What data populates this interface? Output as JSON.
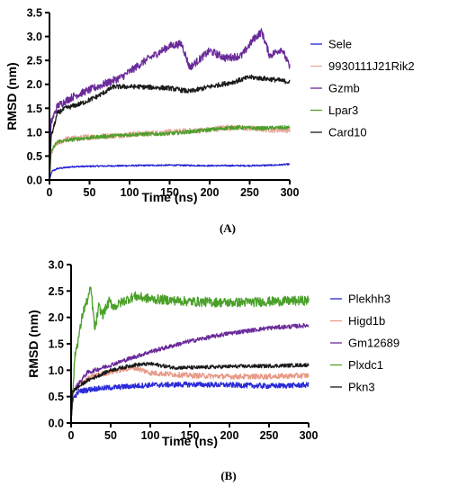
{
  "chart_data": [
    {
      "type": "line",
      "panel_label": "(A)",
      "xlabel": "Time (ns)",
      "ylabel": "RMSD (nm)",
      "xlim": [
        0,
        300
      ],
      "ylim": [
        0,
        3.5
      ],
      "xticks": [
        0,
        50,
        100,
        150,
        200,
        250,
        300
      ],
      "yticks": [
        0.0,
        0.5,
        1.0,
        1.5,
        2.0,
        2.5,
        3.0,
        3.5
      ],
      "ytick_labels": [
        "0.0",
        "0.5",
        "1.0",
        "1.5",
        "2.0",
        "2.5",
        "3.0",
        "3.5"
      ],
      "legend_position": "right",
      "series": [
        {
          "name": "Sele",
          "color": "#2323d0",
          "noise": 0.015,
          "points": [
            [
              0,
              0.0
            ],
            [
              3,
              0.18
            ],
            [
              10,
              0.24
            ],
            [
              30,
              0.28
            ],
            [
              60,
              0.29
            ],
            [
              100,
              0.3
            ],
            [
              150,
              0.31
            ],
            [
              200,
              0.3
            ],
            [
              250,
              0.3
            ],
            [
              280,
              0.31
            ],
            [
              300,
              0.33
            ]
          ]
        },
        {
          "name": "9930111J21Rik2",
          "color": "#e8a898",
          "noise": 0.06,
          "points": [
            [
              0,
              0.0
            ],
            [
              2,
              0.55
            ],
            [
              8,
              0.75
            ],
            [
              20,
              0.85
            ],
            [
              50,
              0.9
            ],
            [
              100,
              0.95
            ],
            [
              150,
              1.0
            ],
            [
              200,
              1.05
            ],
            [
              220,
              1.1
            ],
            [
              250,
              1.08
            ],
            [
              280,
              1.05
            ],
            [
              300,
              1.05
            ]
          ]
        },
        {
          "name": "Gzmb",
          "color": "#6a2a9a",
          "noise": 0.08,
          "points": [
            [
              0,
              0.0
            ],
            [
              2,
              1.2
            ],
            [
              10,
              1.55
            ],
            [
              30,
              1.75
            ],
            [
              60,
              1.95
            ],
            [
              90,
              2.15
            ],
            [
              120,
              2.5
            ],
            [
              150,
              2.8
            ],
            [
              165,
              2.85
            ],
            [
              175,
              2.35
            ],
            [
              200,
              2.7
            ],
            [
              220,
              2.55
            ],
            [
              240,
              2.6
            ],
            [
              255,
              2.95
            ],
            [
              265,
              3.1
            ],
            [
              275,
              2.6
            ],
            [
              290,
              2.75
            ],
            [
              300,
              2.35
            ]
          ]
        },
        {
          "name": "Lpar3",
          "color": "#4aa02a",
          "noise": 0.04,
          "points": [
            [
              0,
              0.0
            ],
            [
              2,
              0.6
            ],
            [
              10,
              0.8
            ],
            [
              30,
              0.85
            ],
            [
              60,
              0.9
            ],
            [
              100,
              0.95
            ],
            [
              150,
              0.97
            ],
            [
              200,
              1.05
            ],
            [
              230,
              1.1
            ],
            [
              260,
              1.08
            ],
            [
              300,
              1.1
            ]
          ]
        },
        {
          "name": "Card10",
          "color": "#1a1a1a",
          "noise": 0.05,
          "points": [
            [
              0,
              0.0
            ],
            [
              2,
              0.9
            ],
            [
              10,
              1.4
            ],
            [
              20,
              1.5
            ],
            [
              40,
              1.6
            ],
            [
              60,
              1.75
            ],
            [
              80,
              1.95
            ],
            [
              110,
              1.95
            ],
            [
              150,
              1.92
            ],
            [
              175,
              1.85
            ],
            [
              200,
              1.95
            ],
            [
              230,
              2.05
            ],
            [
              250,
              2.15
            ],
            [
              280,
              2.1
            ],
            [
              300,
              2.05
            ]
          ]
        }
      ]
    },
    {
      "type": "line",
      "panel_label": "(B)",
      "xlabel": "Time (ns)",
      "ylabel": "RMSD (nm)",
      "xlim": [
        0,
        300
      ],
      "ylim": [
        0,
        3.0
      ],
      "xticks": [
        0,
        50,
        100,
        150,
        200,
        250,
        300
      ],
      "yticks": [
        0.0,
        0.5,
        1.0,
        1.5,
        2.0,
        2.5,
        3.0
      ],
      "ytick_labels": [
        "0.0",
        "0.5",
        "1.0",
        "1.5",
        "2.0",
        "2.5",
        "3.0"
      ],
      "legend_position": "right",
      "series": [
        {
          "name": "Plekhh3",
          "color": "#2a2ad8",
          "noise": 0.05,
          "points": [
            [
              0,
              0.0
            ],
            [
              2,
              0.45
            ],
            [
              10,
              0.6
            ],
            [
              30,
              0.65
            ],
            [
              60,
              0.68
            ],
            [
              100,
              0.72
            ],
            [
              150,
              0.73
            ],
            [
              200,
              0.72
            ],
            [
              250,
              0.7
            ],
            [
              300,
              0.72
            ]
          ]
        },
        {
          "name": "Higd1b",
          "color": "#e89a88",
          "noise": 0.05,
          "points": [
            [
              0,
              0.0
            ],
            [
              2,
              0.55
            ],
            [
              10,
              0.75
            ],
            [
              30,
              0.9
            ],
            [
              60,
              1.0
            ],
            [
              80,
              1.05
            ],
            [
              100,
              0.95
            ],
            [
              150,
              0.9
            ],
            [
              200,
              0.88
            ],
            [
              250,
              0.88
            ],
            [
              300,
              0.9
            ]
          ]
        },
        {
          "name": "Gm12689",
          "color": "#6a2a9a",
          "noise": 0.04,
          "points": [
            [
              0,
              0.0
            ],
            [
              2,
              0.6
            ],
            [
              20,
              0.95
            ],
            [
              50,
              1.1
            ],
            [
              100,
              1.35
            ],
            [
              150,
              1.55
            ],
            [
              200,
              1.7
            ],
            [
              250,
              1.8
            ],
            [
              300,
              1.85
            ]
          ]
        },
        {
          "name": "Plxdc1",
          "color": "#4aa02a",
          "noise": 0.09,
          "points": [
            [
              0,
              0.0
            ],
            [
              2,
              0.55
            ],
            [
              5,
              1.3
            ],
            [
              10,
              1.65
            ],
            [
              15,
              2.1
            ],
            [
              20,
              2.3
            ],
            [
              25,
              2.55
            ],
            [
              30,
              1.75
            ],
            [
              35,
              2.2
            ],
            [
              40,
              2.05
            ],
            [
              48,
              2.3
            ],
            [
              55,
              2.2
            ],
            [
              65,
              2.3
            ],
            [
              80,
              2.4
            ],
            [
              100,
              2.35
            ],
            [
              150,
              2.3
            ],
            [
              200,
              2.28
            ],
            [
              250,
              2.3
            ],
            [
              300,
              2.32
            ]
          ]
        },
        {
          "name": "Pkn3",
          "color": "#1a1a1a",
          "noise": 0.035,
          "points": [
            [
              0,
              0.0
            ],
            [
              2,
              0.6
            ],
            [
              20,
              0.8
            ],
            [
              50,
              1.0
            ],
            [
              80,
              1.1
            ],
            [
              100,
              1.12
            ],
            [
              130,
              1.05
            ],
            [
              160,
              1.05
            ],
            [
              200,
              1.07
            ],
            [
              250,
              1.08
            ],
            [
              300,
              1.1
            ]
          ]
        }
      ]
    }
  ]
}
